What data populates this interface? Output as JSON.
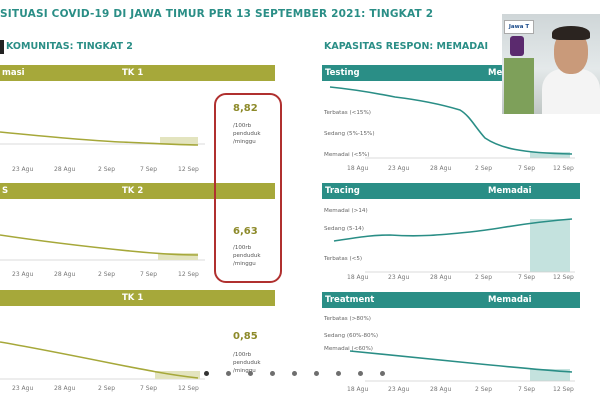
{
  "header": {
    "title": "SITUASI COVID-19 DI JAWA TIMUR PER 13 SEPTEMBER 2021: TINGKAT 2",
    "left_subtitle": "KOMUNITAS: TINGKAT 2",
    "right_subtitle": "KAPASITAS RESPON: MEMADAI"
  },
  "left_panels": [
    {
      "band_label": "masi",
      "level": "TK 1",
      "ticks": [
        "23 Agu",
        "28 Agu",
        "2 Sep",
        "7 Sep",
        "12 Sep"
      ],
      "value": "8,82",
      "unit": [
        "/100rb",
        "penduduk",
        "/minggu"
      ]
    },
    {
      "band_label": "S",
      "level": "TK 2",
      "ticks": [
        "23 Agu",
        "28 Agu",
        "2 Sep",
        "7 Sep",
        "12 Sep"
      ],
      "value": "6,63",
      "unit": [
        "/100rb",
        "penduduk",
        "/minggu"
      ]
    },
    {
      "band_label": "",
      "level": "TK 1",
      "ticks": [
        "23 Agu",
        "28 Agu",
        "2 Sep",
        "7 Sep",
        "12 Sep"
      ],
      "value": "0,85",
      "unit": [
        "/100rb",
        "penduduk",
        "/minggu"
      ]
    }
  ],
  "right_panels": [
    {
      "name": "Testing",
      "status": "Memadai",
      "levels": [
        "Terbatas (<15%)",
        "Sedang (5%-15%)",
        "Memadai (<5%)"
      ],
      "ticks": [
        "18 Agu",
        "23 Agu",
        "28 Agu",
        "2 Sep",
        "7 Sep",
        "12 Sep"
      ]
    },
    {
      "name": "Tracing",
      "status": "Memadai",
      "levels": [
        "Memadai (>14)",
        "Sedang (5-14)",
        "Terbatas (<5)"
      ],
      "ticks": [
        "18 Agu",
        "23 Agu",
        "28 Agu",
        "2 Sep",
        "7 Sep",
        "12 Sep"
      ]
    },
    {
      "name": "Treatment",
      "status": "Memadai",
      "levels": [
        "Terbatas (>80%)",
        "Sedang (60%-80%)",
        "Memadai (<60%)"
      ],
      "ticks": [
        "18 Agu",
        "23 Agu",
        "28 Agu",
        "2 Sep",
        "7 Sep",
        "12 Sep"
      ]
    }
  ],
  "video": {
    "badge": "Jawa T"
  },
  "carousel": {
    "dot_count": 10
  },
  "colors": {
    "olive": "#a6a83a",
    "teal": "#2a8e86",
    "red_box": "#b0302f"
  }
}
